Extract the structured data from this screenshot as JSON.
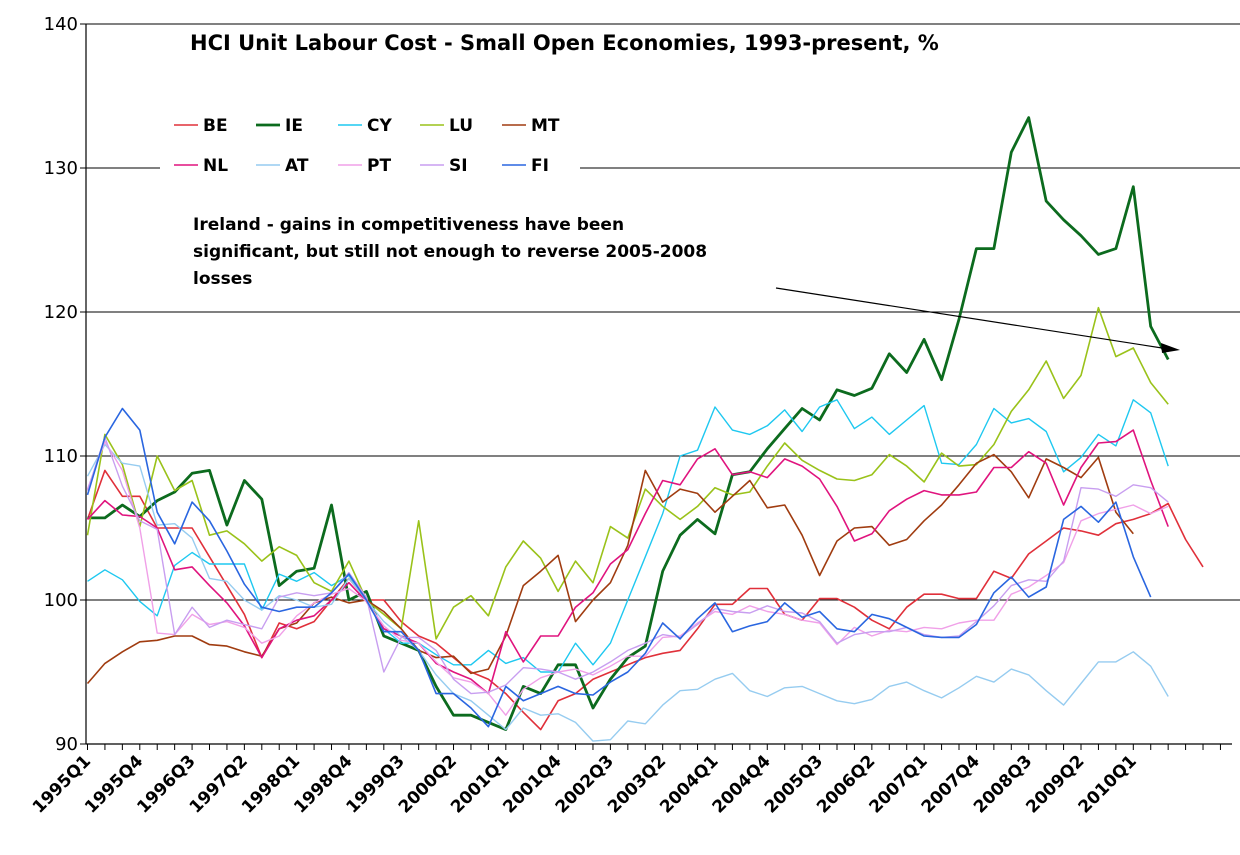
{
  "chart_data": {
    "type": "line",
    "title": "HCI Unit Labour Cost - Small Open Economies, 1993-present, %",
    "annotation": [
      "Ireland - gains in competitiveness have been",
      "significant, but still not enough to reverse 2005-2008",
      "losses"
    ],
    "ylim": [
      90,
      140
    ],
    "yticks": [
      90,
      100,
      110,
      120,
      130,
      140
    ],
    "grid": true,
    "legend_placement": "top-left",
    "x_tick_labels": [
      "1995Q1",
      "1995Q4",
      "1996Q3",
      "1997Q2",
      "1998Q1",
      "1998Q4",
      "1999Q3",
      "2000Q2",
      "2001Q1",
      "2001Q4",
      "2002Q3",
      "2003Q2",
      "2004Q1",
      "2004Q4",
      "2005Q3",
      "2006Q2",
      "2007Q1",
      "2007Q4",
      "2008Q3",
      "2009Q2",
      "2010Q1"
    ],
    "series": [
      {
        "name": "BE",
        "color": "#e0303a",
        "width": 1.6,
        "values": [
          105.6,
          109,
          107.2,
          107.2,
          105,
          105,
          105,
          103,
          101,
          99,
          96,
          98.4,
          98,
          98.5,
          100,
          101.5,
          100,
          100,
          98.5,
          97.5,
          97,
          96,
          95,
          94.5,
          93.5,
          92.2,
          91,
          93,
          93.5,
          94.5,
          95,
          95.5,
          96,
          96.3,
          96.5,
          98,
          99.7,
          99.7,
          100.8,
          100.8,
          99,
          98.6,
          100.1,
          100.1,
          99.5,
          98.6,
          98,
          99.5,
          100.4,
          100.4,
          100.1,
          100.1,
          102,
          101.5,
          103.2,
          104.1,
          105,
          104.8,
          104.5,
          105.3,
          105.6,
          106,
          106.7,
          104.2,
          102.3
        ]
      },
      {
        "name": "IE",
        "color": "#0c6b1e",
        "width": 2.8,
        "values": [
          105.7,
          105.7,
          106.6,
          105.8,
          106.9,
          107.5,
          108.8,
          109,
          105.2,
          108.3,
          107,
          101,
          102,
          102.2,
          106.6,
          100,
          100.6,
          97.5,
          97,
          96.5,
          94,
          92,
          92,
          91.5,
          91,
          94,
          93.5,
          95.5,
          95.5,
          92.5,
          94.5,
          96,
          96.8,
          102,
          104.5,
          105.6,
          104.6,
          108.7,
          108.9,
          110.5,
          111.9,
          113.3,
          112.5,
          114.6,
          114.2,
          114.7,
          117.1,
          115.8,
          118.1,
          115.3,
          119.5,
          124.4,
          124.4,
          131.1,
          133.5,
          127.7,
          126.4,
          125.3,
          124,
          124.4,
          128.7,
          119,
          116.7
        ]
      },
      {
        "name": "CY",
        "color": "#1ec8f0",
        "width": 1.4,
        "values": [
          101.3,
          102.1,
          101.4,
          99.9,
          98.9,
          102.4,
          103.3,
          102.5,
          102.5,
          102.5,
          99.3,
          101.8,
          101.3,
          101.9,
          101,
          101.7,
          100,
          98,
          97,
          97,
          96.2,
          95.5,
          95.5,
          96.5,
          95.6,
          96,
          95,
          95,
          97,
          95.5,
          97,
          100,
          103,
          106,
          110,
          110.4,
          113.4,
          111.8,
          111.5,
          112.1,
          113.2,
          111.7,
          113.4,
          113.9,
          111.9,
          112.7,
          111.5,
          112.5,
          113.5,
          109.5,
          109.4,
          110.8,
          113.3,
          112.3,
          112.6,
          111.7,
          108.9,
          109.9,
          111.5,
          110.7,
          113.9,
          113,
          109.3
        ]
      },
      {
        "name": "LU",
        "color": "#9ac21a",
        "width": 1.6,
        "values": [
          104.5,
          111.5,
          109.4,
          105.1,
          110,
          107.6,
          108.3,
          104.5,
          104.8,
          103.9,
          102.7,
          103.7,
          103.1,
          101.2,
          100.6,
          102.7,
          100,
          99,
          98,
          105.5,
          97.3,
          99.5,
          100.3,
          98.9,
          102.3,
          104.1,
          102.9,
          100.6,
          102.7,
          101.2,
          105.1,
          104.3,
          107.7,
          106.5,
          105.6,
          106.5,
          107.8,
          107.3,
          107.5,
          109.3,
          110.9,
          109.7,
          109,
          108.4,
          108.3,
          108.7,
          110.1,
          109.3,
          108.2,
          110.2,
          109.3,
          109.4,
          110.8,
          113.1,
          114.6,
          116.6,
          114,
          115.6,
          120.3,
          116.9,
          117.5,
          115.1,
          113.6
        ]
      },
      {
        "name": "MT",
        "color": "#a03c10",
        "width": 1.6,
        "values": [
          94.2,
          95.6,
          96.4,
          97.1,
          97.2,
          97.5,
          97.5,
          96.9,
          96.8,
          96.4,
          96.1,
          98,
          98.4,
          99.8,
          100.2,
          99.8,
          100,
          99.2,
          98,
          96.5,
          96,
          96.1,
          94.9,
          95.2,
          97.5,
          101,
          102,
          103.1,
          98.5,
          100,
          101.2,
          103.8,
          109,
          106.8,
          107.7,
          107.4,
          106.1,
          107.2,
          108.3,
          106.4,
          106.6,
          104.5,
          101.7,
          104.1,
          105,
          105.1,
          103.8,
          104.2,
          105.5,
          106.6,
          108,
          109.5,
          110.1,
          108.9,
          107.1,
          109.8,
          109.2,
          108.5,
          109.9,
          106.1,
          104.6
        ]
      },
      {
        "name": "NL",
        "color": "#e0147e",
        "width": 1.6,
        "values": [
          105.6,
          106.9,
          105.9,
          105.8,
          105,
          102.1,
          102.3,
          101,
          99.8,
          98.2,
          96,
          98,
          98.6,
          98.9,
          100,
          101.2,
          99.9,
          98,
          97.5,
          97,
          95.6,
          95,
          94.5,
          93.5,
          97.8,
          95.7,
          97.5,
          97.5,
          99.5,
          100.5,
          102.5,
          103.5,
          106,
          108.3,
          108,
          109.8,
          110.5,
          108.7,
          108.9,
          108.5,
          109.8,
          109.3,
          108.4,
          106.5,
          104.1,
          104.6,
          106.2,
          107,
          107.6,
          107.3,
          107.3,
          107.5,
          109.2,
          109.2,
          110.3,
          109.5,
          106.6,
          109.2,
          110.9,
          111,
          111.8,
          108.3,
          105.1
        ]
      },
      {
        "name": "AT",
        "color": "#96ccf0",
        "width": 1.4,
        "values": [
          108.6,
          110.8,
          109.5,
          109.3,
          105.2,
          105.3,
          104.3,
          101.5,
          101.3,
          100,
          99.3,
          100.3,
          100,
          99.5,
          99.7,
          101.5,
          100,
          98.5,
          97.5,
          96.5,
          94.8,
          93.5,
          93,
          92,
          91,
          92.5,
          92,
          92.1,
          91.5,
          90.2,
          90.3,
          91.6,
          91.4,
          92.7,
          93.7,
          93.8,
          94.5,
          94.9,
          93.7,
          93.3,
          93.9,
          94,
          93.5,
          93,
          92.8,
          93.1,
          94,
          94.3,
          93.7,
          93.2,
          93.9,
          94.7,
          94.3,
          95.2,
          94.8,
          93.7,
          92.7,
          94.2,
          95.7,
          95.7,
          96.4,
          95.4,
          93.3
        ]
      },
      {
        "name": "PT",
        "color": "#f0a0e8",
        "width": 1.4,
        "values": [
          107.7,
          111,
          109,
          105,
          97.7,
          97.6,
          99,
          98.3,
          98.5,
          98.1,
          97,
          97.5,
          98.9,
          99.8,
          100.4,
          100.8,
          99.9,
          98.2,
          97.2,
          97,
          95.7,
          94.6,
          94.3,
          93.5,
          92,
          93.8,
          94.6,
          95,
          95.2,
          94.8,
          95.4,
          96.1,
          96.1,
          97.4,
          97.5,
          98.4,
          99.2,
          99,
          99.6,
          99.2,
          99,
          98.6,
          98.4,
          96.9,
          98.1,
          97.5,
          97.9,
          97.8,
          98.1,
          98,
          98.4,
          98.6,
          98.6,
          100.4,
          100.9,
          101.7,
          102.6,
          105.5,
          106,
          106.3,
          106.6,
          106,
          106.5
        ]
      },
      {
        "name": "SI",
        "color": "#c89ef0",
        "width": 1.4,
        "values": [
          107.6,
          111.3,
          107.9,
          105.5,
          104.9,
          97.6,
          99.5,
          98.1,
          98.6,
          98.3,
          98,
          100.2,
          100.5,
          100.3,
          100.5,
          101.9,
          100.2,
          95,
          97.4,
          97.4,
          96.5,
          94.5,
          93.5,
          93.6,
          94.1,
          95.3,
          95.2,
          95,
          94.5,
          95,
          95.7,
          96.5,
          97,
          97.6,
          97.4,
          98.3,
          99.4,
          99.2,
          99.1,
          99.6,
          99.2,
          99.1,
          98.5,
          97,
          97.6,
          97.8,
          97.8,
          98.1,
          97.6,
          97.4,
          97.5,
          98.5,
          99.6,
          101,
          101.4,
          101.3,
          102.7,
          107.8,
          107.7,
          107.2,
          108,
          107.8,
          106.8
        ]
      },
      {
        "name": "FI",
        "color": "#2a66e0",
        "width": 1.6,
        "values": [
          107.3,
          111.3,
          113.3,
          111.8,
          106.1,
          103.9,
          106.8,
          105.5,
          103.4,
          101.1,
          99.5,
          99.2,
          99.5,
          99.5,
          100.5,
          101.8,
          100,
          97.8,
          97.8,
          96.5,
          93.5,
          93.5,
          92.5,
          91.2,
          94,
          93,
          93.5,
          94,
          93.5,
          93.4,
          94.3,
          95,
          96.3,
          98.4,
          97.3,
          98.7,
          99.8,
          97.8,
          98.2,
          98.5,
          99.8,
          98.8,
          99.2,
          98,
          97.8,
          99,
          98.7,
          98.1,
          97.5,
          97.4,
          97.4,
          98.3,
          100.5,
          101.6,
          100.2,
          100.9,
          105.6,
          106.5,
          105.4,
          106.8,
          103,
          100.2
        ]
      }
    ]
  }
}
